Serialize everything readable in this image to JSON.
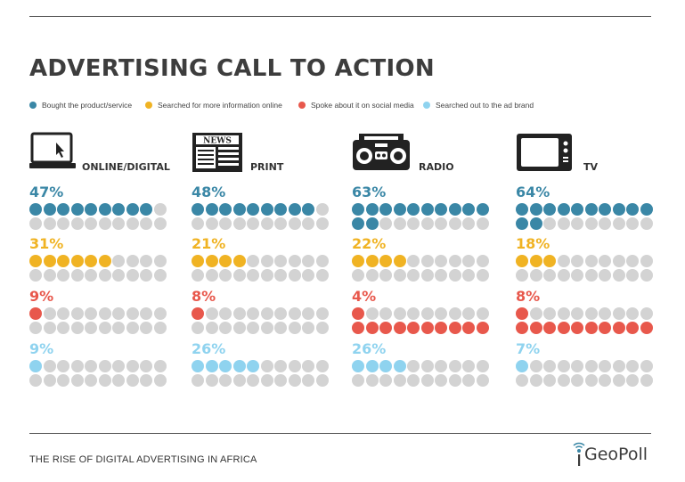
{
  "title": "ADVERTISING CALL TO ACTION",
  "footer": "THE RISE OF DIGITAL ADVERTISING IN AFRICA",
  "logo": "GeoPoll",
  "colors": {
    "bought": "#3a87a6",
    "searched_info": "#f0b323",
    "social": "#e8584c",
    "ad_brand": "#8fd3ef",
    "empty": "#d3d3d3"
  },
  "legend": [
    {
      "label": "Bought the product/service",
      "color": "#3a87a6"
    },
    {
      "label": "Searched for more information online",
      "color": "#f0b323"
    },
    {
      "label": "Spoke about it on social media",
      "color": "#e8584c"
    },
    {
      "label": "Searched out to the ad brand",
      "color": "#8fd3ef"
    }
  ],
  "chart_data": {
    "type": "pictogram",
    "units_per_row": 10,
    "dots_total": 20,
    "groups": [
      {
        "name": "ONLINE/DIGITAL",
        "icon": "laptop-icon",
        "values": [
          {
            "metric": "Bought the product/service",
            "label": "47%",
            "value": 47,
            "filled": 9
          },
          {
            "metric": "Searched for more information online",
            "label": "31%",
            "value": 31,
            "filled": 6
          },
          {
            "metric": "Spoke about it on social media",
            "label": "9%",
            "value": 9,
            "filled": 1
          },
          {
            "metric": "Searched out to the ad brand",
            "label": "9%",
            "value": 9,
            "filled": 1
          }
        ]
      },
      {
        "name": "PRINT",
        "icon": "newspaper-icon",
        "values": [
          {
            "metric": "Bought the product/service",
            "label": "48%",
            "value": 48,
            "filled": 9
          },
          {
            "metric": "Searched for more information online",
            "label": "21%",
            "value": 21,
            "filled": 4
          },
          {
            "metric": "Spoke about it on social media",
            "label": "8%",
            "value": 8,
            "filled": 1
          },
          {
            "metric": "Searched out to the ad brand",
            "label": "26%",
            "value": 26,
            "filled": 5
          }
        ]
      },
      {
        "name": "RADIO",
        "icon": "radio-icon",
        "values": [
          {
            "metric": "Bought the product/service",
            "label": "63%",
            "value": 63,
            "filled": 12
          },
          {
            "metric": "Searched for more information online",
            "label": "22%",
            "value": 22,
            "filled": 4
          },
          {
            "metric": "Spoke about it on social media",
            "label": "4%",
            "value": 4,
            "filled": 1,
            "second_row_filled": true
          },
          {
            "metric": "Searched out to the ad brand",
            "label": "26%",
            "value": 26,
            "filled": 4
          }
        ]
      },
      {
        "name": "TV",
        "icon": "tv-icon",
        "values": [
          {
            "metric": "Bought the product/service",
            "label": "64%",
            "value": 64,
            "filled": 12
          },
          {
            "metric": "Searched for more information online",
            "label": "18%",
            "value": 18,
            "filled": 3
          },
          {
            "metric": "Spoke about it on social media",
            "label": "8%",
            "value": 8,
            "filled": 1,
            "second_row_filled": true
          },
          {
            "metric": "Searched out to the ad brand",
            "label": "7%",
            "value": 7,
            "filled": 1
          }
        ]
      }
    ]
  }
}
